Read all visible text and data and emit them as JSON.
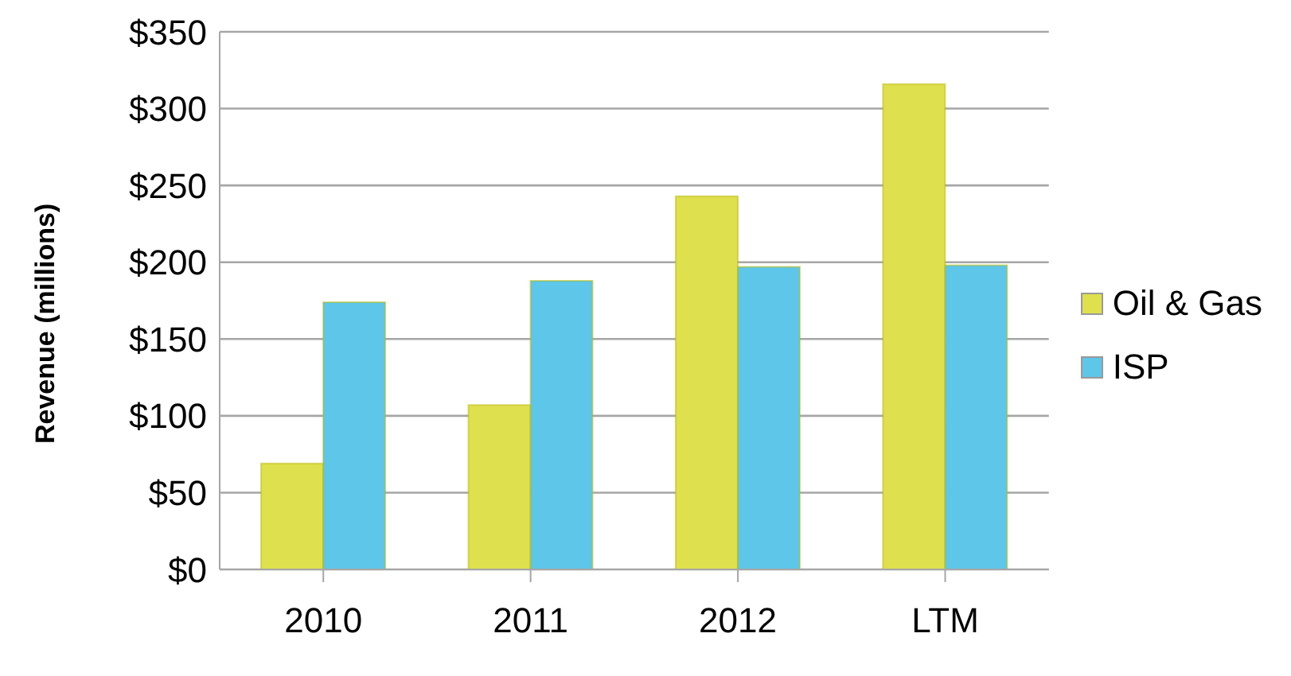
{
  "chart_data": {
    "type": "bar",
    "ylabel": "Revenue (millions)",
    "categories": [
      "2010",
      "2011",
      "2012",
      "LTM"
    ],
    "series": [
      {
        "name": "Oil & Gas",
        "color": "#dfe04e",
        "values": [
          69,
          107,
          243,
          316
        ]
      },
      {
        "name": "ISP",
        "color": "#5ec6e8",
        "values": [
          174,
          188,
          197,
          198
        ]
      }
    ],
    "ylim": [
      0,
      350
    ],
    "yticks": [
      {
        "value": 0,
        "label": "$0"
      },
      {
        "value": 50,
        "label": "$50"
      },
      {
        "value": 100,
        "label": "$100"
      },
      {
        "value": 150,
        "label": "$150"
      },
      {
        "value": 200,
        "label": "$200"
      },
      {
        "value": 250,
        "label": "$250"
      },
      {
        "value": 300,
        "label": "$300"
      },
      {
        "value": 350,
        "label": "$350"
      }
    ],
    "grid": "y",
    "legend": "right"
  }
}
